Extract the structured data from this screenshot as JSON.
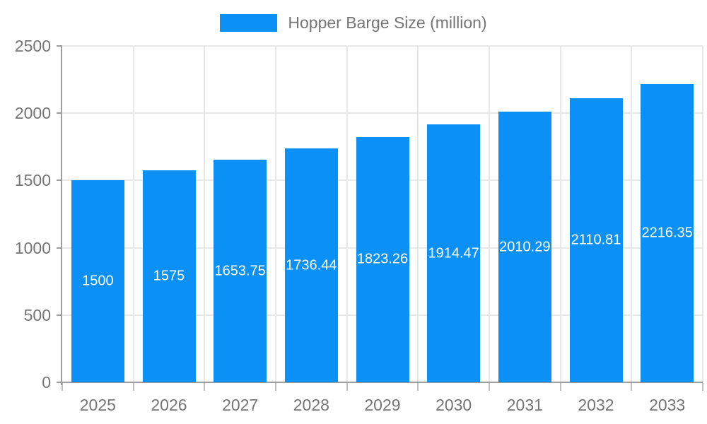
{
  "chart_data": {
    "type": "bar",
    "title": "",
    "legend": "Hopper Barge Size (million)",
    "legend_position": "top",
    "categories": [
      "2025",
      "2026",
      "2027",
      "2028",
      "2029",
      "2030",
      "2031",
      "2032",
      "2033"
    ],
    "values": [
      1500,
      1575,
      1653.75,
      1736.44,
      1823.26,
      1914.47,
      2010.29,
      2110.81,
      2216.35
    ],
    "value_labels": [
      "1500",
      "1575",
      "1653.75",
      "1736.44",
      "1823.26",
      "1914.47",
      "2010.29",
      "2110.81",
      "2216.35"
    ],
    "xlabel": "",
    "ylabel": "",
    "ylim": [
      0,
      2500
    ],
    "y_ticks": [
      "0",
      "500",
      "1000",
      "1500",
      "2000",
      "2500"
    ],
    "grid": true
  },
  "colors": {
    "bar": "#0b90f6",
    "axis": "#9e9e9e",
    "gridline": "#e8e8e8",
    "tick_text": "#757575",
    "bar_label_text": "#ffffff"
  }
}
